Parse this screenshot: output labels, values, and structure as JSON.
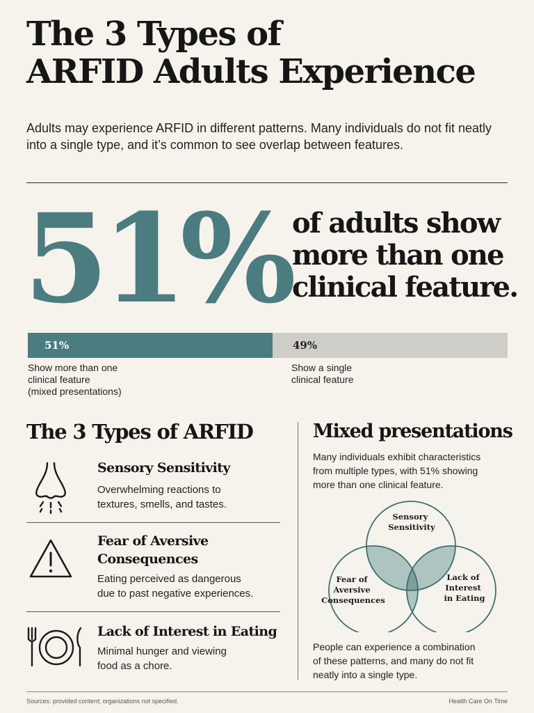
{
  "header": {
    "title_lines": [
      "The 3 Types of",
      "ARFID Adults Experience"
    ],
    "intro": "Adults may experience ARFID in different patterns. Many individuals do not fit neatly into a single type, and it’s common to see overlap between features."
  },
  "stat": {
    "value": "51%",
    "caption_lines": [
      "of adults show",
      "more than one",
      "clinical feature."
    ]
  },
  "bar": {
    "fraction_mixed": 0.51,
    "label_mixed": "51%",
    "label_single": "49%",
    "desc_mixed_lines": [
      "Show more than one",
      "clinical feature",
      "(mixed presentations)"
    ],
    "desc_single_lines": [
      "Show a single",
      "clinical feature"
    ],
    "colors": {
      "mixed": "#4a7c80",
      "single": "#cfcdc8"
    }
  },
  "types": {
    "heading": "The 3 Types of ARFID",
    "items": [
      {
        "icon": "nose-icon",
        "title_lines": [
          "Sensory Sensitivity"
        ],
        "desc_lines": [
          "Overwhelming reactions to",
          "textures, smells, and tastes."
        ]
      },
      {
        "icon": "warning-triangle-icon",
        "title_lines": [
          "Fear of Aversive",
          "Consequences"
        ],
        "desc_lines": [
          "Eating perceived as dangerous",
          "due to past negative experiences."
        ]
      },
      {
        "icon": "fork-plate-knife-icon",
        "title_lines": [
          "Lack of Interest in Eating"
        ],
        "desc_lines": [
          "Minimal hunger and viewing",
          "food as a chore."
        ]
      }
    ]
  },
  "mixed": {
    "heading": "Mixed presentations",
    "desc_lines": [
      "Many individuals exhibit characteristics",
      "from multiple types, with 51% showing",
      "more than one clinical feature."
    ],
    "venn": {
      "top_lines": [
        "Sensory",
        "Sensitivity"
      ],
      "left_lines": [
        "Fear of",
        "Aversive",
        "Consequences"
      ],
      "right_lines": [
        "Lack of",
        "Interest",
        "in Eating"
      ],
      "colors": {
        "outline": "#3f6f73",
        "overlap": "#aec4c1",
        "center": "#7f9e9c"
      }
    },
    "outro_lines": [
      "People can experience a combination",
      "of these patterns, and many do not fit",
      "neatly into a single type."
    ]
  },
  "footer": {
    "sources": "Sources: provided content; organizations not specified.",
    "brand": "Health Care On Time"
  }
}
